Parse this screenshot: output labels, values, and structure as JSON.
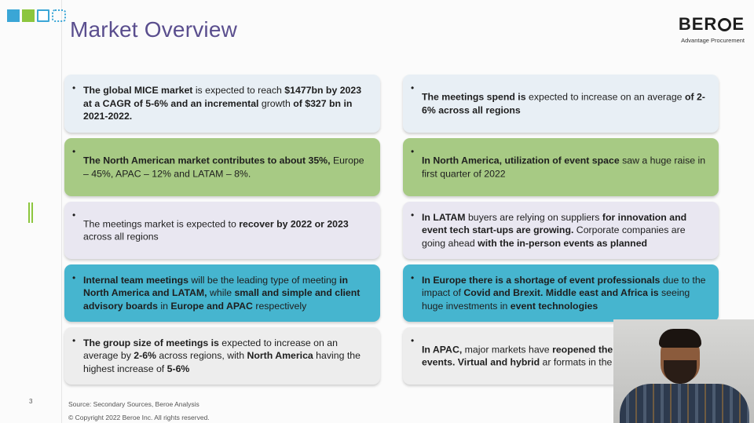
{
  "title": "Market Overview",
  "logo": {
    "word_prefix": "BER",
    "word_suffix": "E",
    "tagline": "Advantage Procurement"
  },
  "page_number": "3",
  "footer": {
    "source": "Source: Secondary Sources, Beroe Analysis",
    "copyright": "© Copyright 2022 Beroe Inc. All rights reserved."
  },
  "colors": {
    "title": "#5a4e8e",
    "blue_light": "#e8eff5",
    "green": "#a7ca84",
    "lavender": "#e9e7f1",
    "teal": "#46b5cf",
    "grey": "#ededed",
    "accent_blue": "#3aa6d6",
    "accent_green": "#8cc63e"
  },
  "icons": [
    "blue-square-icon",
    "green-square-icon",
    "outline-square-icon",
    "dotted-square-icon"
  ],
  "left_boxes": [
    {
      "color": "blue_light",
      "runs": [
        {
          "t": "The global MICE market",
          "b": true
        },
        {
          "t": " is expected to reach ",
          "b": false
        },
        {
          "t": "$1477bn by 2023 at a CAGR of 5-6% and an incremental",
          "b": true
        },
        {
          "t": " growth ",
          "b": false
        },
        {
          "t": "of $327 bn in 2021-2022.",
          "b": true
        }
      ]
    },
    {
      "color": "green",
      "runs": [
        {
          "t": "The North American market contributes to about 35%, ",
          "b": true
        },
        {
          "t": "Europe – 45%, APAC – 12% and LATAM – 8%.",
          "b": false
        }
      ]
    },
    {
      "color": "lavender",
      "runs": [
        {
          "t": "The meetings market is expected to ",
          "b": false
        },
        {
          "t": "recover by 2022 or 2023",
          "b": true
        },
        {
          "t": " across all regions",
          "b": false
        }
      ]
    },
    {
      "color": "teal",
      "runs": [
        {
          "t": "Internal team meetings",
          "b": true
        },
        {
          "t": " will be the leading type of meeting ",
          "b": false
        },
        {
          "t": "in North America and LATAM,",
          "b": true
        },
        {
          "t": " while ",
          "b": false
        },
        {
          "t": "small and simple and client advisory boards",
          "b": true
        },
        {
          "t": " in ",
          "b": false
        },
        {
          "t": "Europe and APAC",
          "b": true
        },
        {
          "t": " respectively",
          "b": false
        }
      ]
    },
    {
      "color": "grey",
      "runs": [
        {
          "t": "The group size of meetings is",
          "b": true
        },
        {
          "t": " expected to increase on an average by ",
          "b": false
        },
        {
          "t": "2-6%",
          "b": true
        },
        {
          "t": " across regions, with ",
          "b": false
        },
        {
          "t": "North America",
          "b": true
        },
        {
          "t": " having the highest increase of ",
          "b": false
        },
        {
          "t": "5-6%",
          "b": true
        }
      ]
    }
  ],
  "right_boxes": [
    {
      "color": "blue_light",
      "runs": [
        {
          "t": "The meetings spend is",
          "b": true
        },
        {
          "t": " expected to increase on an average ",
          "b": false
        },
        {
          "t": "of 2-6% across all regions",
          "b": true
        }
      ]
    },
    {
      "color": "green",
      "runs": [
        {
          "t": "In North America, utilization of event space",
          "b": true
        },
        {
          "t": " saw a huge raise in first quarter of 2022",
          "b": false
        }
      ]
    },
    {
      "color": "lavender",
      "runs": [
        {
          "t": "In LATAM",
          "b": true
        },
        {
          "t": " buyers are relying on suppliers ",
          "b": false
        },
        {
          "t": "for innovation and event tech start-ups are growing.",
          "b": true
        },
        {
          "t": " Corporate companies are going ahead ",
          "b": false
        },
        {
          "t": "with the in-person events as planned",
          "b": true
        }
      ]
    },
    {
      "color": "teal",
      "runs": [
        {
          "t": "In Europe there is a shortage of event professionals",
          "b": true
        },
        {
          "t": " due to the impact of ",
          "b": false
        },
        {
          "t": "Covid and Brexit. Middle east and Africa is",
          "b": true
        },
        {
          "t": " seeing huge investments in ",
          "b": false
        },
        {
          "t": "event technologies",
          "b": true
        }
      ]
    },
    {
      "color": "grey",
      "runs": [
        {
          "t": "In APAC,",
          "b": true
        },
        {
          "t": " major markets have ",
          "b": false
        },
        {
          "t": "reopened the",
          "b": true
        },
        {
          "t": " ",
          "b": false
        },
        {
          "t": "international events. Virtual and hybrid",
          "b": true
        },
        {
          "t": " ar",
          "b": false
        },
        {
          "t": " formats in the present scenario",
          "b": false
        }
      ]
    }
  ]
}
